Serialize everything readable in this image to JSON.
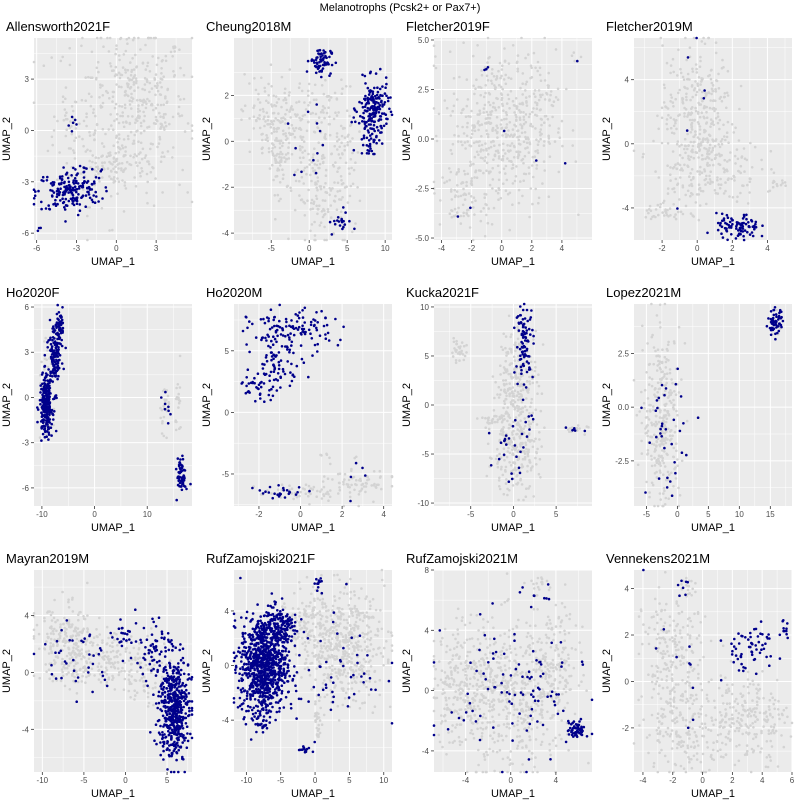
{
  "figure": {
    "title": "Melanotrophs (Pcsk2+ or Pax7+)",
    "xlabel": "UMAP_1",
    "ylabel": "UMAP_2",
    "colors": {
      "panel_bg": "#ebebeb",
      "grid": "#ffffff",
      "background_cells": "#d3d3d3",
      "highlighted_cells": "#00008b"
    }
  },
  "chart_data": [
    {
      "type": "scatter",
      "title": "Allensworth2021F",
      "xlim": [
        -6.2,
        5.7
      ],
      "ylim": [
        -6.4,
        5.4
      ],
      "xticks": [
        -6,
        -3,
        0,
        3
      ],
      "yticks": [
        -6,
        -3,
        0,
        3
      ],
      "xlabel": "UMAP_1",
      "ylabel": "UMAP_2",
      "background": [
        {
          "x": 0.5,
          "y": 1.0,
          "sx": 2.6,
          "sy": 2.6,
          "n": 300
        },
        {
          "x": 2.0,
          "y": 1.5,
          "sx": 1.5,
          "sy": 2.0,
          "n": 140
        },
        {
          "x": 0.0,
          "y": -2.0,
          "sx": 1.5,
          "sy": 0.7,
          "n": 80
        },
        {
          "x": -3.5,
          "y": 0.5,
          "sx": 0.4,
          "sy": 0.6,
          "n": 20
        }
      ],
      "highlighted": [
        {
          "x": -3.6,
          "y": -3.6,
          "sx": 1.2,
          "sy": 0.6,
          "n": 170
        },
        {
          "x": -2.4,
          "y": -2.6,
          "sx": 0.6,
          "sy": 0.4,
          "n": 25
        },
        {
          "x": -3.5,
          "y": 0.4,
          "sx": 0.4,
          "sy": 0.4,
          "n": 6
        },
        {
          "x": -5.8,
          "y": -5.8,
          "sx": 0.1,
          "sy": 0.1,
          "n": 3
        }
      ]
    },
    {
      "type": "scatter",
      "title": "Cheung2018M",
      "xlim": [
        -9.9,
        10.9
      ],
      "ylim": [
        -4.3,
        4.5
      ],
      "xticks": [
        -5,
        0,
        5,
        10
      ],
      "yticks": [
        -4,
        -2,
        0,
        2
      ],
      "xlabel": "UMAP_1",
      "ylabel": "UMAP_2",
      "background": [
        {
          "x": -6.0,
          "y": 1.0,
          "sx": 1.5,
          "sy": 1.0,
          "n": 80
        },
        {
          "x": -4.0,
          "y": -0.5,
          "sx": 1.0,
          "sy": 1.3,
          "n": 80
        },
        {
          "x": -1.5,
          "y": 0.5,
          "sx": 1.5,
          "sy": 1.2,
          "n": 90
        },
        {
          "x": 1.5,
          "y": -2.5,
          "sx": 1.5,
          "sy": 1.0,
          "n": 90
        },
        {
          "x": 2.5,
          "y": 0.8,
          "sx": 1.5,
          "sy": 1.2,
          "n": 80
        },
        {
          "x": 4.5,
          "y": -1.5,
          "sx": 0.8,
          "sy": 1.5,
          "n": 60
        }
      ],
      "highlighted": [
        {
          "x": 8.5,
          "y": 1.4,
          "sx": 1.0,
          "sy": 0.6,
          "n": 170
        },
        {
          "x": 8.0,
          "y": 0.2,
          "sx": 0.8,
          "sy": 0.5,
          "n": 40
        },
        {
          "x": 1.5,
          "y": 3.5,
          "sx": 0.7,
          "sy": 0.3,
          "n": 70
        },
        {
          "x": 4.0,
          "y": -3.5,
          "sx": 0.7,
          "sy": 0.3,
          "n": 20
        },
        {
          "x": -1.0,
          "y": -0.5,
          "sx": 1.5,
          "sy": 1.0,
          "n": 12
        }
      ]
    },
    {
      "type": "scatter",
      "title": "Fletcher2019F",
      "xlim": [
        -4.5,
        6.0
      ],
      "ylim": [
        -5.1,
        5.1
      ],
      "xticks": [
        -4,
        -2,
        0,
        2,
        4
      ],
      "yticks": [
        -5.0,
        -2.5,
        0.0,
        2.5,
        5.0
      ],
      "xlabel": "UMAP_1",
      "ylabel": "UMAP_2",
      "background": [
        {
          "x": 0.0,
          "y": 0.5,
          "sx": 1.8,
          "sy": 2.0,
          "n": 500
        },
        {
          "x": -2.5,
          "y": -3.0,
          "sx": 0.8,
          "sy": 0.8,
          "n": 60
        },
        {
          "x": 2.5,
          "y": 2.5,
          "sx": 0.6,
          "sy": 0.8,
          "n": 40
        },
        {
          "x": 5.0,
          "y": 4.0,
          "sx": 0.2,
          "sy": 0.2,
          "n": 4
        }
      ],
      "highlighted": [
        {
          "x": -1.0,
          "y": 3.3,
          "sx": 0.3,
          "sy": 0.2,
          "n": 3
        },
        {
          "x": -2.5,
          "y": -3.5,
          "sx": 0.3,
          "sy": 0.3,
          "n": 2
        },
        {
          "x": 0.0,
          "y": -0.8,
          "sx": 1.5,
          "sy": 1.0,
          "n": 3
        },
        {
          "x": 5.0,
          "y": 4.0,
          "sx": 0.05,
          "sy": 0.05,
          "n": 1
        }
      ]
    },
    {
      "type": "scatter",
      "title": "Fletcher2019M",
      "xlim": [
        -3.6,
        5.4
      ],
      "ylim": [
        -6.0,
        6.6
      ],
      "xticks": [
        -2,
        0,
        2,
        4
      ],
      "yticks": [
        -4,
        0,
        4
      ],
      "xlabel": "UMAP_1",
      "ylabel": "UMAP_2",
      "background": [
        {
          "x": 0.0,
          "y": 2.0,
          "sx": 1.0,
          "sy": 2.2,
          "n": 300
        },
        {
          "x": 0.5,
          "y": -1.5,
          "sx": 1.5,
          "sy": 1.2,
          "n": 180
        },
        {
          "x": -1.8,
          "y": -4.3,
          "sx": 0.6,
          "sy": 0.3,
          "n": 35
        },
        {
          "x": 4.5,
          "y": -2.5,
          "sx": 0.4,
          "sy": 0.2,
          "n": 12
        }
      ],
      "highlighted": [
        {
          "x": 2.3,
          "y": -5.2,
          "sx": 0.6,
          "sy": 0.4,
          "n": 90
        },
        {
          "x": 0.2,
          "y": 3.0,
          "sx": 1.0,
          "sy": 3.0,
          "n": 6
        }
      ]
    },
    {
      "type": "scatter",
      "title": "Ho2020F",
      "xlim": [
        -11.5,
        18.5
      ],
      "ylim": [
        -7.2,
        6.2
      ],
      "xticks": [
        -10,
        0,
        10
      ],
      "yticks": [
        -6,
        -3,
        0,
        3,
        6
      ],
      "xlabel": "UMAP_1",
      "ylabel": "UMAP_2",
      "background": [
        {
          "x": 13.5,
          "y": -0.5,
          "sx": 0.5,
          "sy": 0.8,
          "n": 25
        },
        {
          "x": 16.0,
          "y": -0.5,
          "sx": 0.3,
          "sy": 1.2,
          "n": 20
        },
        {
          "x": -9.0,
          "y": 0.0,
          "sx": 0.8,
          "sy": 1.5,
          "n": 40
        }
      ],
      "highlighted": [
        {
          "x": -9.2,
          "y": -0.5,
          "sx": 0.6,
          "sy": 1.0,
          "n": 230
        },
        {
          "x": -7.5,
          "y": 2.8,
          "sx": 0.6,
          "sy": 1.2,
          "n": 140
        },
        {
          "x": -6.5,
          "y": 4.8,
          "sx": 0.4,
          "sy": 0.5,
          "n": 40
        },
        {
          "x": 16.5,
          "y": -5.2,
          "sx": 0.4,
          "sy": 0.6,
          "n": 60
        },
        {
          "x": 13.8,
          "y": -0.8,
          "sx": 0.5,
          "sy": 0.5,
          "n": 8
        }
      ]
    },
    {
      "type": "scatter",
      "title": "Ho2020M",
      "xlim": [
        -3.2,
        4.4
      ],
      "ylim": [
        -7.6,
        8.8
      ],
      "xticks": [
        -2,
        0,
        2,
        4
      ],
      "yticks": [
        -5,
        0,
        5
      ],
      "xlabel": "UMAP_1",
      "ylabel": "UMAP_2",
      "background": [
        {
          "x": 2.5,
          "y": -5.8,
          "sx": 1.0,
          "sy": 0.8,
          "n": 80
        },
        {
          "x": 0.0,
          "y": -6.5,
          "sx": 1.0,
          "sy": 0.4,
          "n": 40
        },
        {
          "x": 1.2,
          "y": -3.5,
          "sx": 0.3,
          "sy": 0.3,
          "n": 5
        }
      ],
      "highlighted": [
        {
          "x": -0.5,
          "y": 6.5,
          "sx": 1.0,
          "sy": 0.9,
          "n": 130
        },
        {
          "x": -2.0,
          "y": 2.0,
          "sx": 0.5,
          "sy": 0.5,
          "n": 40
        },
        {
          "x": -1.0,
          "y": 4.0,
          "sx": 0.6,
          "sy": 0.8,
          "n": 50
        },
        {
          "x": -1.0,
          "y": -6.5,
          "sx": 0.6,
          "sy": 0.3,
          "n": 25
        },
        {
          "x": 2.5,
          "y": -5.5,
          "sx": 1.2,
          "sy": 0.8,
          "n": 5
        }
      ]
    },
    {
      "type": "scatter",
      "title": "Kucka2021F",
      "xlim": [
        -9.3,
        9.2
      ],
      "ylim": [
        -10.3,
        10.3
      ],
      "xticks": [
        -5,
        0,
        5
      ],
      "yticks": [
        -10,
        -5,
        0,
        5,
        10
      ],
      "xlabel": "UMAP_1",
      "ylabel": "UMAP_2",
      "background": [
        {
          "x": 0.5,
          "y": 2.0,
          "sx": 1.2,
          "sy": 3.0,
          "n": 250
        },
        {
          "x": 0.0,
          "y": -5.0,
          "sx": 1.5,
          "sy": 2.0,
          "n": 200
        },
        {
          "x": -6.5,
          "y": 5.5,
          "sx": 0.5,
          "sy": 0.5,
          "n": 30
        },
        {
          "x": 7.5,
          "y": -2.5,
          "sx": 0.8,
          "sy": 0.2,
          "n": 15
        },
        {
          "x": -2.5,
          "y": -1.5,
          "sx": 0.8,
          "sy": 0.5,
          "n": 25
        }
      ],
      "highlighted": [
        {
          "x": 1.3,
          "y": 6.5,
          "sx": 0.5,
          "sy": 1.8,
          "n": 90
        },
        {
          "x": 0.0,
          "y": -5.0,
          "sx": 1.5,
          "sy": 2.5,
          "n": 25
        },
        {
          "x": 7.5,
          "y": -2.5,
          "sx": 0.8,
          "sy": 0.2,
          "n": 6
        },
        {
          "x": 2.0,
          "y": -1.5,
          "sx": 0.5,
          "sy": 0.5,
          "n": 4
        }
      ]
    },
    {
      "type": "scatter",
      "title": "Lopez2021M",
      "xlim": [
        -7.0,
        18.5
      ],
      "ylim": [
        -4.6,
        4.8
      ],
      "xticks": [
        -5,
        0,
        5,
        10,
        15
      ],
      "yticks": [
        -2.5,
        0.0,
        2.5
      ],
      "xlabel": "UMAP_1",
      "ylabel": "UMAP_2",
      "background": [
        {
          "x": -2.5,
          "y": -0.5,
          "sx": 1.5,
          "sy": 2.0,
          "n": 300
        },
        {
          "x": 15.8,
          "y": 4.0,
          "sx": 0.5,
          "sy": 0.3,
          "n": 10
        }
      ],
      "highlighted": [
        {
          "x": 15.8,
          "y": 3.9,
          "sx": 0.6,
          "sy": 0.3,
          "n": 60
        },
        {
          "x": -2.0,
          "y": -1.0,
          "sx": 1.5,
          "sy": 1.5,
          "n": 35
        }
      ]
    },
    {
      "type": "scatter",
      "title": "Mayran2019M",
      "xlim": [
        -11.0,
        8.0
      ],
      "ylim": [
        -7.0,
        7.2
      ],
      "xticks": [
        -10,
        -5,
        0,
        5
      ],
      "yticks": [
        -4,
        0,
        4
      ],
      "xlabel": "UMAP_1",
      "ylabel": "UMAP_2",
      "background": [
        {
          "x": -7.0,
          "y": 2.0,
          "sx": 2.0,
          "sy": 1.3,
          "n": 220
        },
        {
          "x": -1.5,
          "y": 1.0,
          "sx": 1.5,
          "sy": 1.0,
          "n": 100
        },
        {
          "x": 2.5,
          "y": 0.0,
          "sx": 1.5,
          "sy": 1.2,
          "n": 80
        },
        {
          "x": -5.5,
          "y": 0.0,
          "sx": 1.0,
          "sy": 0.5,
          "n": 40
        }
      ],
      "highlighted": [
        {
          "x": 5.8,
          "y": -2.5,
          "sx": 0.9,
          "sy": 1.8,
          "n": 500
        },
        {
          "x": 3.5,
          "y": 1.5,
          "sx": 1.2,
          "sy": 1.0,
          "n": 60
        },
        {
          "x": 0.0,
          "y": 2.5,
          "sx": 0.8,
          "sy": 0.7,
          "n": 25
        },
        {
          "x": -6.0,
          "y": 1.0,
          "sx": 2.5,
          "sy": 1.5,
          "n": 40
        }
      ]
    },
    {
      "type": "scatter",
      "title": "RufZamojski2021F",
      "xlim": [
        -11.8,
        11.2
      ],
      "ylim": [
        -7.8,
        7.0
      ],
      "xticks": [
        -10,
        -5,
        0,
        5,
        10
      ],
      "yticks": [
        -4,
        0,
        4
      ],
      "xlabel": "UMAP_1",
      "ylabel": "UMAP_2",
      "background": [
        {
          "x": 4.0,
          "y": 1.5,
          "sx": 3.0,
          "sy": 2.0,
          "n": 500
        },
        {
          "x": -1.0,
          "y": 3.5,
          "sx": 1.5,
          "sy": 1.2,
          "n": 100
        },
        {
          "x": 0.5,
          "y": -4.0,
          "sx": 0.3,
          "sy": 0.8,
          "n": 30
        }
      ],
      "highlighted": [
        {
          "x": -7.5,
          "y": 0.0,
          "sx": 1.7,
          "sy": 1.8,
          "n": 900
        },
        {
          "x": -5.0,
          "y": 2.8,
          "sx": 1.2,
          "sy": 0.8,
          "n": 150
        },
        {
          "x": -8.0,
          "y": -3.8,
          "sx": 0.6,
          "sy": 0.6,
          "n": 25
        },
        {
          "x": 0.5,
          "y": 5.8,
          "sx": 0.3,
          "sy": 0.3,
          "n": 12
        },
        {
          "x": -1.5,
          "y": -6.2,
          "sx": 0.5,
          "sy": 0.15,
          "n": 15
        },
        {
          "x": 2.0,
          "y": 0.0,
          "sx": 4.0,
          "sy": 2.5,
          "n": 60
        }
      ]
    },
    {
      "type": "scatter",
      "title": "RufZamojski2021M",
      "xlim": [
        -6.8,
        7.2
      ],
      "ylim": [
        -5.4,
        8.0
      ],
      "xticks": [
        -4,
        0,
        4
      ],
      "yticks": [
        -4,
        0,
        4,
        8
      ],
      "xlabel": "UMAP_1",
      "ylabel": "UMAP_2",
      "background": [
        {
          "x": -4.0,
          "y": 0.5,
          "sx": 1.5,
          "sy": 2.0,
          "n": 300
        },
        {
          "x": 0.5,
          "y": -0.5,
          "sx": 2.0,
          "sy": 2.5,
          "n": 400
        },
        {
          "x": 4.0,
          "y": 1.5,
          "sx": 1.0,
          "sy": 2.0,
          "n": 150
        },
        {
          "x": 2.5,
          "y": 7.0,
          "sx": 0.8,
          "sy": 0.4,
          "n": 20
        }
      ],
      "highlighted": [
        {
          "x": 5.8,
          "y": -2.6,
          "sx": 0.4,
          "sy": 0.3,
          "n": 60
        },
        {
          "x": 0.5,
          "y": 0.0,
          "sx": 3.0,
          "sy": 2.5,
          "n": 100
        },
        {
          "x": 3.0,
          "y": 6.5,
          "sx": 0.5,
          "sy": 0.5,
          "n": 6
        }
      ]
    },
    {
      "type": "scatter",
      "title": "Vennekens2021M",
      "xlim": [
        -4.6,
        6.0
      ],
      "ylim": [
        -3.9,
        4.8
      ],
      "xticks": [
        -4,
        -2,
        0,
        2,
        4,
        6
      ],
      "yticks": [
        -2,
        0,
        2,
        4
      ],
      "xlabel": "UMAP_1",
      "ylabel": "UMAP_2",
      "background": [
        {
          "x": -2.0,
          "y": 1.0,
          "sx": 1.0,
          "sy": 1.5,
          "n": 220
        },
        {
          "x": -1.0,
          "y": -2.0,
          "sx": 1.5,
          "sy": 1.0,
          "n": 180
        },
        {
          "x": 3.0,
          "y": -1.5,
          "sx": 1.3,
          "sy": 1.0,
          "n": 200
        },
        {
          "x": -1.0,
          "y": 4.0,
          "sx": 0.3,
          "sy": 0.3,
          "n": 10
        },
        {
          "x": 4.5,
          "y": -1.8,
          "sx": 0.3,
          "sy": 0.5,
          "n": 12
        }
      ],
      "highlighted": [
        {
          "x": 3.2,
          "y": 1.5,
          "sx": 1.0,
          "sy": 0.5,
          "n": 60
        },
        {
          "x": 5.2,
          "y": 2.0,
          "sx": 0.4,
          "sy": 0.3,
          "n": 10
        },
        {
          "x": -1.3,
          "y": 4.2,
          "sx": 0.2,
          "sy": 0.2,
          "n": 6
        },
        {
          "x": -1.0,
          "y": 0.0,
          "sx": 2.0,
          "sy": 2.0,
          "n": 12
        }
      ]
    }
  ]
}
